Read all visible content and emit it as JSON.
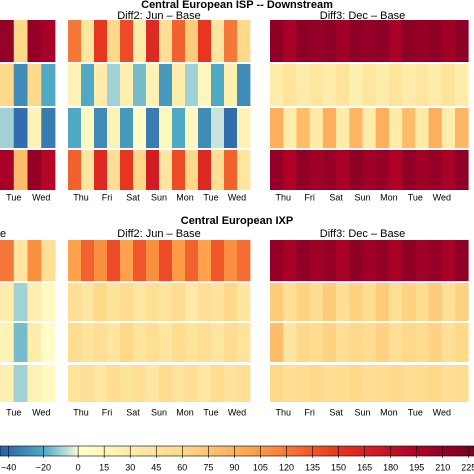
{
  "chart_data": [
    {
      "type": "heatmap",
      "title": "Central European ISP -- Downstream",
      "panels": [
        {
          "days": [
            "Tue",
            "Wed"
          ],
          "rows": [
            [
              210,
              60,
              210,
              200
            ],
            [
              60,
              -30,
              60,
              -20
            ],
            [
              -10,
              -40,
              20,
              -35
            ],
            [
              200,
              80,
              210,
              190
            ]
          ]
        },
        {
          "title": "Diff2: Jun – Base",
          "days": [
            "Thu",
            "Fri",
            "Sat",
            "Sun",
            "Mon",
            "Tue",
            "Wed"
          ],
          "rows": [
            [
              120,
              40,
              150,
              60,
              140,
              30,
              160,
              50,
              130,
              70,
              150,
              40,
              120,
              60
            ],
            [
              20,
              -20,
              30,
              -10,
              25,
              -15,
              20,
              -25,
              30,
              -10,
              15,
              -20,
              25,
              -30
            ],
            [
              -20,
              10,
              -30,
              20,
              -25,
              5,
              -35,
              15,
              -20,
              10,
              -30,
              -5,
              -40,
              20
            ],
            [
              130,
              40,
              160,
              50,
              150,
              60,
              170,
              40,
              140,
              60,
              160,
              50,
              130,
              40
            ]
          ]
        },
        {
          "title": "Diff3: Dec – Base",
          "days": [
            "Thu",
            "Fri",
            "Sat",
            "Sun",
            "Mon",
            "Tue",
            "Wed"
          ],
          "rows": [
            [
              215,
              200,
              215,
              210,
              215,
              205,
              215,
              210,
              215,
              200,
              215,
              210,
              215,
              205,
              215
            ],
            [
              30,
              45,
              30,
              40,
              30,
              45,
              25,
              40,
              30,
              45,
              30,
              40,
              30,
              45,
              30
            ],
            [
              90,
              30,
              80,
              35,
              90,
              30,
              85,
              30,
              90,
              30,
              80,
              35,
              90,
              30,
              85
            ],
            [
              210,
              195,
              215,
              205,
              210,
              200,
              215,
              205,
              210,
              195,
              215,
              205,
              210,
              200,
              215
            ]
          ]
        }
      ]
    },
    {
      "type": "heatmap",
      "title": "Central European IXP",
      "panels": [
        {
          "title": "e",
          "days": [
            "Tue",
            "Wed"
          ],
          "rows": [
            [
              120,
              40,
              110,
              50
            ],
            [
              30,
              -10,
              25,
              10
            ],
            [
              20,
              -15,
              30,
              5
            ],
            [
              25,
              -10,
              20,
              10
            ]
          ]
        },
        {
          "title": "Diff2: Jun – Base",
          "days": [
            "Thu",
            "Fri",
            "Sat",
            "Sun",
            "Mon",
            "Tue",
            "Wed"
          ],
          "rows": [
            [
              100,
              130,
              110,
              140,
              100,
              135,
              110,
              140,
              105,
              130,
              100,
              135,
              110,
              125
            ],
            [
              50,
              40,
              60,
              45,
              55,
              40,
              50,
              45,
              55,
              35,
              50,
              45,
              60,
              40
            ],
            [
              55,
              45,
              50,
              40,
              60,
              45,
              50,
              40,
              55,
              45,
              50,
              40,
              55,
              45
            ],
            [
              45,
              50,
              40,
              55,
              45,
              50,
              40,
              55,
              45,
              50,
              40,
              55,
              45,
              50
            ]
          ]
        },
        {
          "title": "Diff3: Dec – Base",
          "days": [
            "Thu",
            "Fri",
            "Sat",
            "Sun",
            "Mon",
            "Tue",
            "Wed"
          ],
          "rows": [
            [
              210,
              200,
              215,
              205,
              210,
              200,
              215,
              205,
              210,
              200,
              215,
              205,
              210,
              200,
              215
            ],
            [
              70,
              50,
              65,
              55,
              70,
              50,
              65,
              55,
              70,
              50,
              65,
              55,
              70,
              50,
              65
            ],
            [
              80,
              40,
              60,
              55,
              65,
              50,
              60,
              55,
              65,
              50,
              60,
              55,
              65,
              50,
              60
            ],
            [
              60,
              50,
              55,
              60,
              50,
              55,
              60,
              50,
              55,
              60,
              50,
              55,
              60,
              50,
              55
            ]
          ]
        }
      ]
    }
  ],
  "colorbar": {
    "xlim": [
      -45,
      228
    ],
    "xticks": [
      {
        "value": -40,
        "label": "−40"
      },
      {
        "value": -20,
        "label": "−20"
      },
      0,
      15,
      30,
      45,
      60,
      75,
      90,
      105,
      120,
      135,
      150,
      165,
      180,
      195,
      210,
      225
    ],
    "colorscale": [
      [
        -45,
        "#2b5fa8"
      ],
      [
        -20,
        "#4fa8c4"
      ],
      [
        -4,
        "#cfe9df"
      ],
      [
        0,
        "#ffffcc"
      ],
      [
        60,
        "#fed98a"
      ],
      [
        105,
        "#fd9a44"
      ],
      [
        150,
        "#e8351f"
      ],
      [
        195,
        "#b00026"
      ],
      [
        228,
        "#7a0026"
      ]
    ]
  }
}
